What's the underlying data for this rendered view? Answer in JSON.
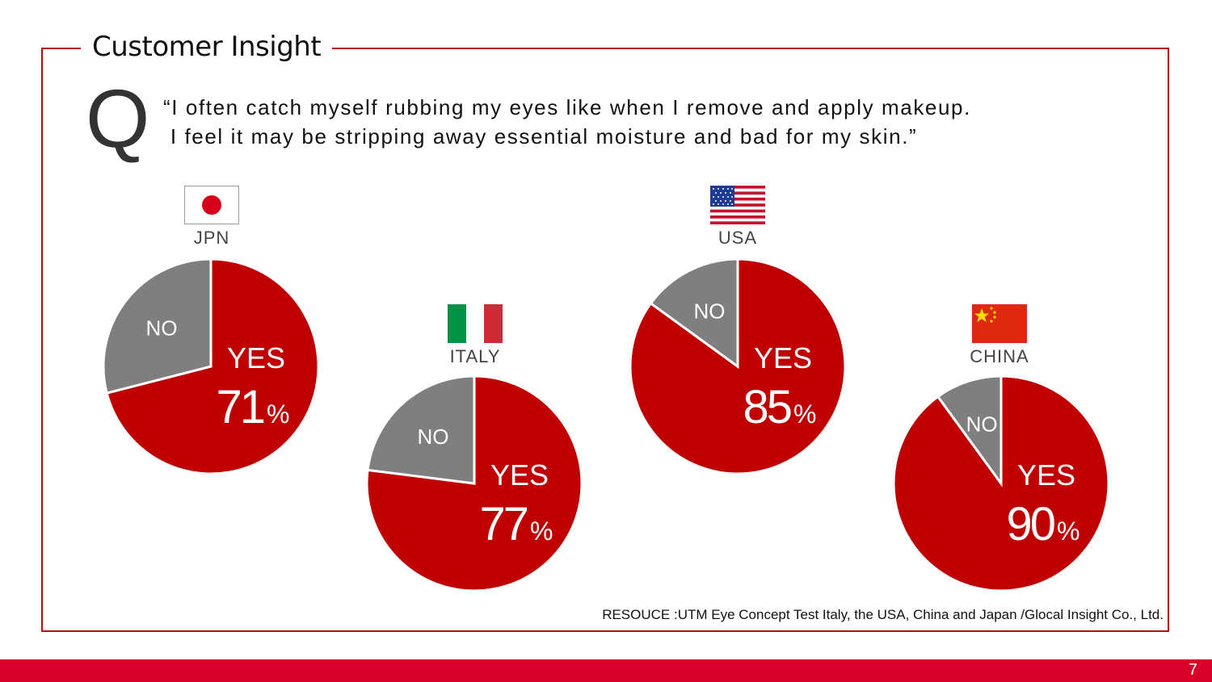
{
  "slide": {
    "title": "Customer Insight",
    "question_letter": "Q",
    "quote_line1": "“I often catch myself rubbing my eyes like when I remove and apply makeup.",
    "quote_line2": " I feel it may be stripping away essential moisture and bad for my skin.”",
    "source": "RESOUCE :UTM Eye Concept Test Italy, the USA, China and Japan /Glocal Insight Co., Ltd.",
    "page_number": "7"
  },
  "colors": {
    "yes": "#c00000",
    "no": "#7f7f7f",
    "frame": "#b50d14",
    "footer": "#d6002a"
  },
  "chart_data": [
    {
      "type": "pie",
      "country": "JPN",
      "flag": "japan-flag",
      "categories": [
        "YES",
        "NO"
      ],
      "values": [
        71,
        29
      ],
      "yes_label": "YES",
      "no_label": "NO",
      "yes_value": "71",
      "percent_sign": "%"
    },
    {
      "type": "pie",
      "country": "ITALY",
      "flag": "italy-flag",
      "categories": [
        "YES",
        "NO"
      ],
      "values": [
        77,
        23
      ],
      "yes_label": "YES",
      "no_label": "NO",
      "yes_value": "77",
      "percent_sign": "%"
    },
    {
      "type": "pie",
      "country": "USA",
      "flag": "usa-flag",
      "categories": [
        "YES",
        "NO"
      ],
      "values": [
        85,
        15
      ],
      "yes_label": "YES",
      "no_label": "NO",
      "yes_value": "85",
      "percent_sign": "%"
    },
    {
      "type": "pie",
      "country": "CHINA",
      "flag": "china-flag",
      "categories": [
        "YES",
        "NO"
      ],
      "values": [
        90,
        10
      ],
      "yes_label": "YES",
      "no_label": "NO",
      "yes_value": "90",
      "percent_sign": "%"
    }
  ]
}
